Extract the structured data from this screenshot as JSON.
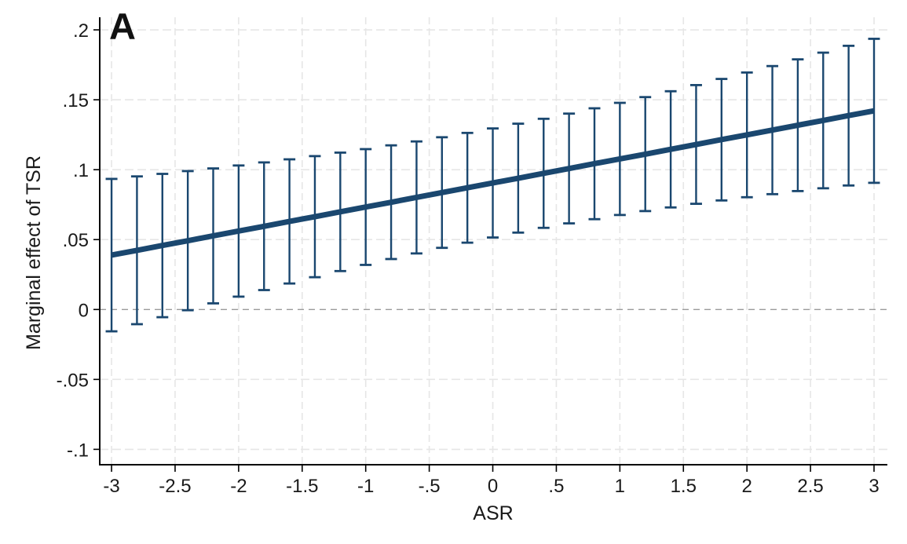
{
  "figure": {
    "background": "#ffffff"
  },
  "colors": {
    "line": "#1a476f",
    "error_bar": "#1a476f",
    "grid": "#e6e6e6",
    "zero_line": "#9b9b9b",
    "axis": "#000000",
    "text": "#1a1a1a",
    "panel_label": "#111111"
  },
  "chart_data": {
    "type": "line",
    "panel_label": "A",
    "title": "",
    "xlabel": "ASR",
    "ylabel": "Marginal effect of TSR",
    "xlim": [
      -3.093,
      3.105
    ],
    "ylim": [
      -0.111,
      0.209
    ],
    "grid": true,
    "legend_position": "none",
    "zero_reference": 0,
    "x_ticks": {
      "values": [
        -3,
        -2.5,
        -2,
        -1.5,
        -1,
        -0.5,
        0,
        0.5,
        1,
        1.5,
        2,
        2.5,
        3
      ],
      "labels": [
        "-3",
        "-2.5",
        "-2",
        "-1.5",
        "-1",
        "-.5",
        "0",
        ".5",
        "1",
        "1.5",
        "2",
        "2.5",
        "3"
      ]
    },
    "y_ticks": {
      "values": [
        0.2,
        0.15,
        0.1,
        0.05,
        0,
        -0.05,
        -0.1
      ],
      "labels": [
        ".2",
        ".15",
        ".1",
        ".05",
        "0",
        "-.05",
        "-.1"
      ]
    },
    "series": [
      {
        "name": "marginal-effect-line",
        "type": "line",
        "x": [
          -3,
          -2.8,
          -2.6,
          -2.4,
          -2.2,
          -2,
          -1.8,
          -1.6,
          -1.4,
          -1.2,
          -1,
          -0.8,
          -0.6,
          -0.4,
          -0.2,
          0,
          0.2,
          0.4,
          0.6,
          0.8,
          1,
          1.2,
          1.4,
          1.6,
          1.8,
          2,
          2.2,
          2.4,
          2.6,
          2.8,
          3
        ],
        "y": [
          0.0389,
          0.0423,
          0.0458,
          0.0492,
          0.0527,
          0.0561,
          0.0595,
          0.063,
          0.0664,
          0.0699,
          0.0733,
          0.0767,
          0.0802,
          0.0836,
          0.0871,
          0.0905,
          0.0939,
          0.0974,
          0.1008,
          0.1043,
          0.1077,
          0.1111,
          0.1146,
          0.118,
          0.1215,
          0.1249,
          0.1283,
          0.1318,
          0.1352,
          0.1387,
          0.1421
        ]
      },
      {
        "name": "confidence-interval",
        "type": "errorbar",
        "x": [
          -3,
          -2.8,
          -2.6,
          -2.4,
          -2.2,
          -2,
          -1.8,
          -1.6,
          -1.4,
          -1.2,
          -1,
          -0.8,
          -0.6,
          -0.4,
          -0.2,
          0,
          0.2,
          0.4,
          0.6,
          0.8,
          1,
          1.2,
          1.4,
          1.6,
          1.8,
          2,
          2.2,
          2.4,
          2.6,
          2.8,
          3
        ],
        "low": [
          -0.0156,
          -0.0105,
          -0.0055,
          -0.0005,
          0.0044,
          0.0092,
          0.0139,
          0.0186,
          0.0231,
          0.0275,
          0.0319,
          0.0361,
          0.0401,
          0.0441,
          0.0478,
          0.0515,
          0.055,
          0.0584,
          0.0616,
          0.0646,
          0.0676,
          0.0704,
          0.073,
          0.0756,
          0.078,
          0.0803,
          0.0825,
          0.0847,
          0.0867,
          0.0887,
          0.0906
        ],
        "high": [
          0.0934,
          0.0952,
          0.097,
          0.099,
          0.1009,
          0.103,
          0.1052,
          0.1074,
          0.1097,
          0.1122,
          0.1147,
          0.1174,
          0.1202,
          0.1232,
          0.1263,
          0.1295,
          0.1329,
          0.1364,
          0.1401,
          0.1439,
          0.1478,
          0.1519,
          0.1561,
          0.1605,
          0.1649,
          0.1695,
          0.1741,
          0.1789,
          0.1837,
          0.1886,
          0.1936
        ]
      }
    ]
  }
}
